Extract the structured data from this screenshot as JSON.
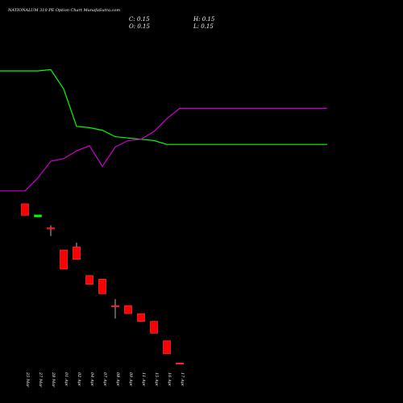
{
  "header": {
    "title": "NATIONALUM 310  PE Option  Chart MunafaSutra.com",
    "close": "C: 0.15",
    "open": "O: 0.15",
    "high": "H: 0.15",
    "low": "L: 0.15"
  },
  "colors": {
    "background": "#000000",
    "up": "#00ff00",
    "down": "#ff0000",
    "green_line": "#00ff00",
    "magenta_line": "#cc00cc",
    "wick": "#ffffff",
    "text": "#ffffff"
  },
  "chart_data": {
    "type": "candlestick",
    "categories": [
      "25 Mar",
      "27 Mar",
      "28 Mar",
      "01 Apr",
      "02 Apr",
      "04 Apr",
      "07 Apr",
      "08 Apr",
      "09 Apr",
      "11 Apr",
      "15 Apr",
      "16 Apr",
      "17 Apr"
    ],
    "candles": [
      {
        "open": 21.5,
        "high": 21.5,
        "low": 15.0,
        "close": 15.0
      },
      {
        "open": 14.3,
        "high": 15.2,
        "low": 14.3,
        "close": 15.2
      },
      {
        "open": 10.2,
        "high": 11.0,
        "low": 7.9,
        "close": 9.9
      },
      {
        "open": 5.1,
        "high": 5.1,
        "low": 2.8,
        "close": 2.8
      },
      {
        "open": 5.6,
        "high": 6.4,
        "low": 3.8,
        "close": 3.8
      },
      {
        "open": 2.3,
        "high": 2.3,
        "low": 1.75,
        "close": 1.75
      },
      {
        "open": 2.05,
        "high": 2.05,
        "low": 1.3,
        "close": 1.3
      },
      {
        "open": 0.9,
        "high": 1.1,
        "low": 0.6,
        "close": 0.9
      },
      {
        "open": 0.9,
        "high": 0.9,
        "low": 0.7,
        "close": 0.7
      },
      {
        "open": 0.7,
        "high": 0.7,
        "low": 0.55,
        "close": 0.55
      },
      {
        "open": 0.55,
        "high": 0.55,
        "low": 0.38,
        "close": 0.38
      },
      {
        "open": 0.3,
        "high": 0.3,
        "low": 0.2,
        "close": 0.2
      },
      {
        "open": 0.15,
        "high": 0.15,
        "low": 0.15,
        "close": 0.15
      }
    ],
    "y_scale": "log",
    "lines": [
      {
        "color": "green",
        "values": [
          0.95,
          0.95,
          0.96,
          0.81,
          0.52,
          0.51,
          0.49,
          0.44,
          0.43,
          0.42,
          0.41,
          0.38,
          0.38
        ]
      },
      {
        "color": "magenta",
        "values": [
          0.02,
          0.12,
          0.25,
          0.27,
          0.33,
          0.37,
          0.21,
          0.36,
          0.41,
          0.42,
          0.48,
          0.58,
          0.66
        ]
      }
    ],
    "grid": false
  }
}
